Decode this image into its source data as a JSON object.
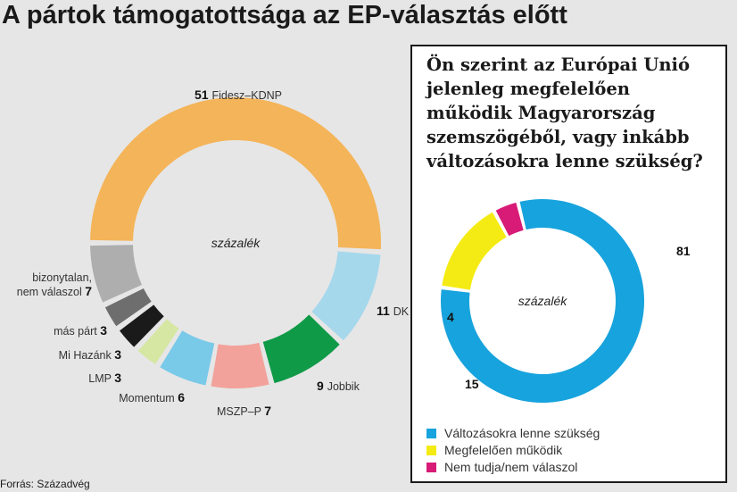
{
  "title": "A pártok támogatottsága az EP-választás előtt",
  "source": "Forrás: Századvég",
  "chart_data": [
    {
      "type": "pie",
      "center_label": "százalék",
      "slices": [
        {
          "name": "Fidesz–KDNP",
          "value": 51,
          "color": "#f4b459"
        },
        {
          "name": "DK",
          "value": 11,
          "color": "#a6d8ec"
        },
        {
          "name": "Jobbik",
          "value": 9,
          "color": "#0f9a48"
        },
        {
          "name": "MSZP–P",
          "value": 7,
          "color": "#f2a29a"
        },
        {
          "name": "Momentum",
          "value": 6,
          "color": "#79c9e9"
        },
        {
          "name": "LMP",
          "value": 3,
          "color": "#d6e7a3"
        },
        {
          "name": "Mi Hazánk",
          "value": 3,
          "color": "#1a1a1a"
        },
        {
          "name": "más párt",
          "value": 3,
          "color": "#6e6e6e"
        },
        {
          "name": "bizonytalan, nem válaszol",
          "value": 7,
          "color": "#aeaeae"
        }
      ]
    },
    {
      "type": "pie",
      "title": "Ön szerint az Európai Unió jelenleg megfelelően működik Magyarország szemszögéből, vagy inkább változásokra lenne szükség?",
      "center_label": "százalék",
      "slices": [
        {
          "name": "Változásokra lenne szükség",
          "value": 81,
          "color": "#17a3dd"
        },
        {
          "name": "Megfelelően működik",
          "value": 15,
          "color": "#f5eb14"
        },
        {
          "name": "Nem tudja/nem válaszol",
          "value": 4,
          "color": "#d81b77"
        }
      ]
    }
  ]
}
